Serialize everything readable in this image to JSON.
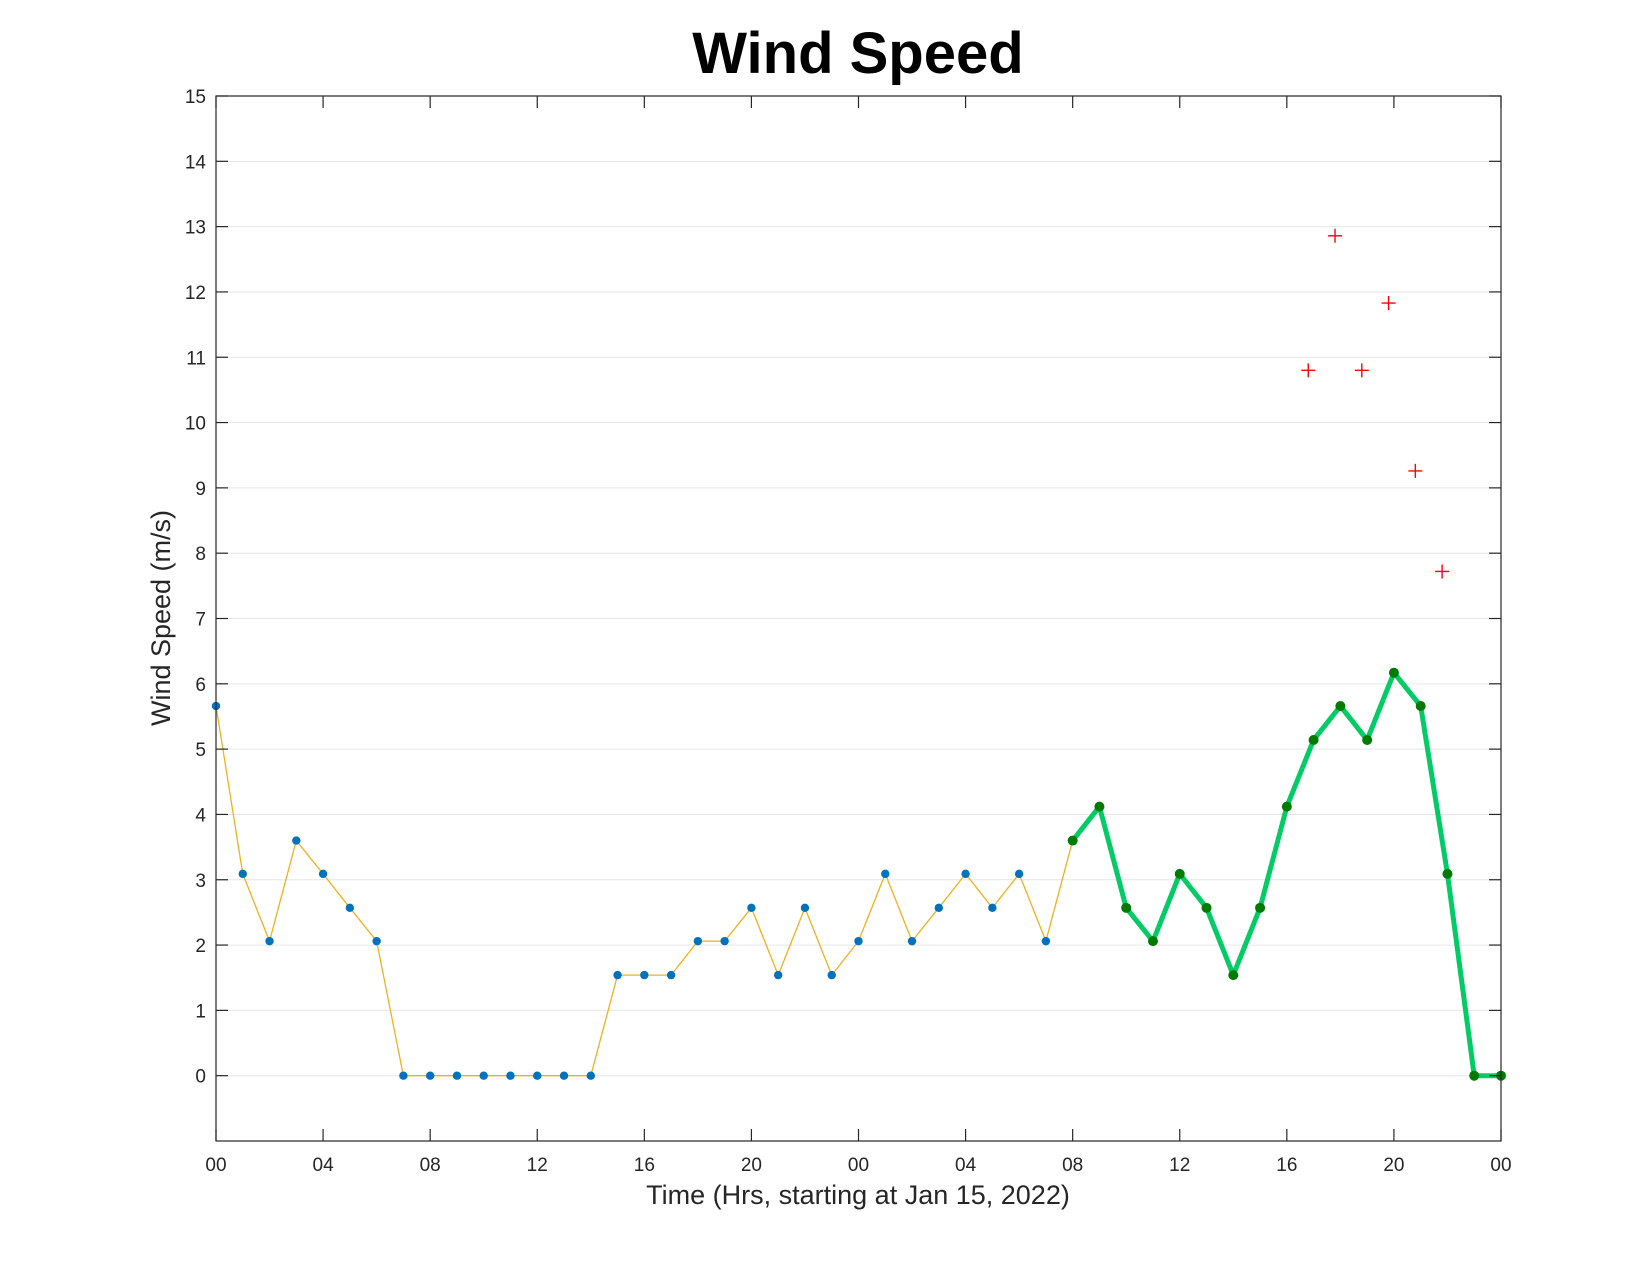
{
  "chart_data": {
    "type": "line",
    "title": "Wind Speed",
    "xlabel": "Time (Hrs, starting at Jan 15, 2022)",
    "ylabel": "Wind Speed (m/s)",
    "xlim": [
      0,
      48
    ],
    "ylim": [
      -1,
      15
    ],
    "grid": "horizontal",
    "x_ticks": [
      {
        "value": 0,
        "label": "00"
      },
      {
        "value": 4,
        "label": "04"
      },
      {
        "value": 8,
        "label": "08"
      },
      {
        "value": 12,
        "label": "12"
      },
      {
        "value": 16,
        "label": "16"
      },
      {
        "value": 20,
        "label": "20"
      },
      {
        "value": 24,
        "label": "00"
      },
      {
        "value": 28,
        "label": "04"
      },
      {
        "value": 32,
        "label": "08"
      },
      {
        "value": 36,
        "label": "12"
      },
      {
        "value": 40,
        "label": "16"
      },
      {
        "value": 44,
        "label": "20"
      },
      {
        "value": 48,
        "label": "00"
      }
    ],
    "y_ticks": [
      0,
      1,
      2,
      3,
      4,
      5,
      6,
      7,
      8,
      9,
      10,
      11,
      12,
      13,
      14,
      15
    ],
    "series": [
      {
        "style": "thin-line-dots",
        "line_color": "#EDB120",
        "marker_color": "#0072BD",
        "x": [
          0,
          1,
          2,
          3,
          4,
          5,
          6,
          7,
          8,
          9,
          10,
          11,
          12,
          13,
          14,
          15,
          16,
          17,
          18,
          19,
          20,
          21,
          22,
          23,
          24,
          25,
          26,
          27,
          28,
          29,
          30,
          31,
          32
        ],
        "y": [
          5.66,
          3.09,
          2.06,
          3.6,
          3.09,
          2.57,
          2.06,
          0,
          0,
          0,
          0,
          0,
          0,
          0,
          0,
          1.54,
          1.54,
          1.54,
          2.06,
          2.06,
          2.57,
          1.54,
          2.57,
          1.54,
          2.06,
          3.09,
          2.06,
          2.57,
          3.09,
          2.57,
          3.09,
          2.06,
          3.6
        ]
      },
      {
        "style": "thick-line-dots",
        "line_color": "#00CC66",
        "marker_color": "#007A00",
        "x": [
          32,
          33,
          34,
          35,
          36,
          37,
          38,
          39,
          40,
          41,
          42,
          43,
          44,
          45,
          46,
          47,
          48
        ],
        "y": [
          3.6,
          4.12,
          2.57,
          2.06,
          3.09,
          2.57,
          1.54,
          2.57,
          4.12,
          5.14,
          5.66,
          5.14,
          6.17,
          5.66,
          3.09,
          0,
          0
        ]
      },
      {
        "style": "plus-markers",
        "marker_color": "#FF0000",
        "x": [
          40.8,
          41.8,
          42.8,
          43.8,
          44.8,
          45.8
        ],
        "y": [
          10.8,
          12.86,
          10.8,
          11.83,
          9.26,
          7.72
        ]
      }
    ]
  }
}
